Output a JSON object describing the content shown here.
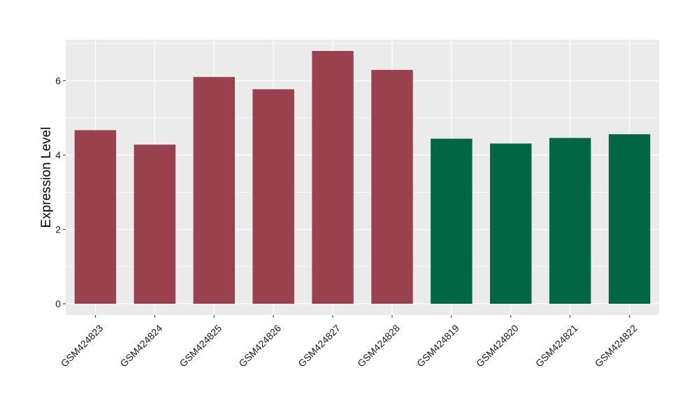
{
  "chart_data": {
    "type": "bar",
    "title": "",
    "xlabel": "",
    "ylabel": "Expression Level",
    "categories": [
      "GSM424823",
      "GSM424824",
      "GSM424825",
      "GSM424826",
      "GSM424827",
      "GSM424828",
      "GSM424819",
      "GSM424820",
      "GSM424821",
      "GSM424822"
    ],
    "values": [
      4.67,
      4.28,
      6.1,
      5.77,
      6.8,
      6.29,
      4.44,
      4.31,
      4.46,
      4.56
    ],
    "bar_colors": [
      "#99414f",
      "#99414f",
      "#99414f",
      "#99414f",
      "#99414f",
      "#99414f",
      "#006644",
      "#006644",
      "#006644",
      "#006644"
    ],
    "ylim": [
      -0.3,
      7.1
    ],
    "yticks": [
      0,
      2,
      4,
      6
    ],
    "ytick_labels": [
      "0",
      "2",
      "4",
      "6"
    ],
    "grid": true,
    "legend": "none",
    "panel_background": "#ebebeb",
    "grid_color": "#ffffff"
  }
}
